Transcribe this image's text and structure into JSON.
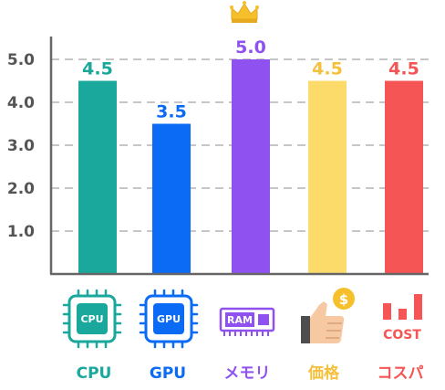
{
  "chart_data": {
    "type": "bar",
    "categories": [
      "CPU",
      "GPU",
      "メモリ",
      "価格",
      "コスパ"
    ],
    "values": [
      4.5,
      3.5,
      5.0,
      4.5,
      4.5
    ],
    "value_labels": [
      "4.5",
      "3.5",
      "5.0",
      "4.5",
      "4.5"
    ],
    "ylim": [
      0,
      5.5
    ],
    "yticks": [
      "1.0",
      "2.0",
      "3.0",
      "4.0",
      "5.0"
    ],
    "grid": "dashed-horizontal",
    "colors": [
      "#1aa89c",
      "#0b6bf4",
      "#8f52f0",
      "#fddb6b",
      "#f55555"
    ],
    "label_colors": [
      "#1aa89c",
      "#0b6bf4",
      "#8f52f0",
      "#f5c03c",
      "#f55555"
    ],
    "icons": [
      "cpu-chip-icon",
      "gpu-chip-icon",
      "ram-module-icon",
      "thumbs-up-coin-icon",
      "cost-bars-icon"
    ],
    "icon_text": [
      "CPU",
      "GPU",
      "RAM",
      "$",
      "COST"
    ],
    "highlight_icon": "crown-icon",
    "highlight_index": 2
  }
}
